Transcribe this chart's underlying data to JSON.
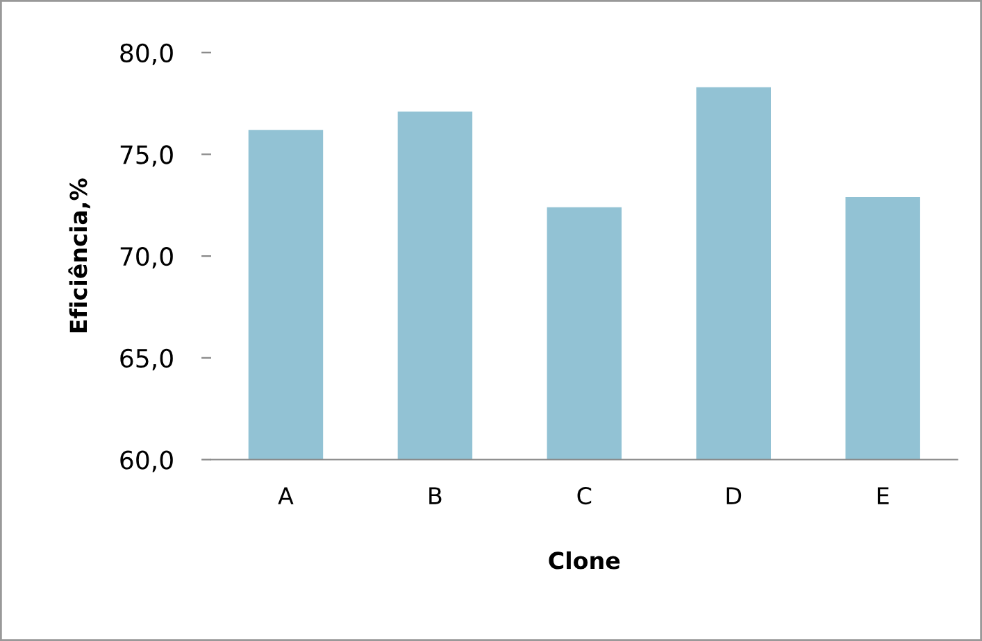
{
  "chart_data": {
    "type": "bar",
    "xlabel": "Clone",
    "ylabel": "Eficiência,%",
    "categories": [
      "A",
      "B",
      "C",
      "D",
      "E"
    ],
    "values": [
      76.2,
      77.1,
      72.4,
      78.3,
      72.9
    ],
    "color": "#92c2d4",
    "ylim": [
      60,
      80
    ],
    "yticks": [
      {
        "value": 60,
        "label": "60,0"
      },
      {
        "value": 65,
        "label": "65,0"
      },
      {
        "value": 70,
        "label": "70,0"
      },
      {
        "value": 75,
        "label": "75,0"
      },
      {
        "value": 80,
        "label": "80,0"
      }
    ],
    "grid": false,
    "legend": false
  }
}
